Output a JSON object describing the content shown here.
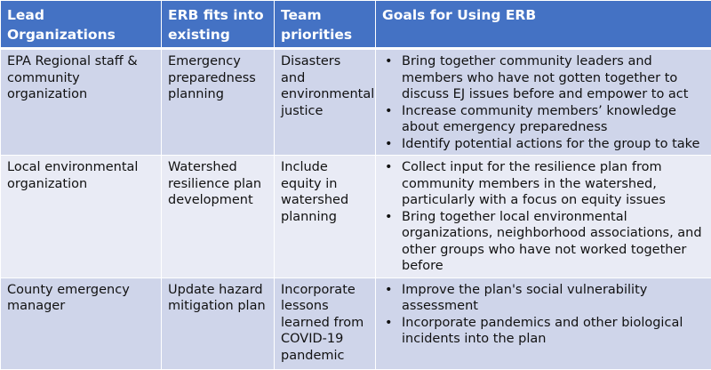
{
  "colors": {
    "header_bg": "#4472c4",
    "row_dark": "#cfd5ea",
    "row_light": "#e9ebf5",
    "border": "#ffffff",
    "header_text": "#ffffff",
    "body_text": "#111111"
  },
  "table": {
    "headers": [
      "Lead Organizations",
      "ERB fits into existing",
      "Team priorities",
      "Goals for Using ERB"
    ],
    "rows": [
      {
        "lead": "EPA Regional staff & community organization",
        "fits": "Emergency preparedness planning",
        "priorities": "Disasters and environmental justice",
        "goals": [
          "Bring together community leaders and members who have not gotten together to discuss EJ issues before and empower to act",
          "Increase community members’ knowledge about emergency preparedness",
          "Identify potential actions for the group to take"
        ]
      },
      {
        "lead": "Local environmental organization",
        "fits": "Watershed resilience plan development",
        "priorities": "Include equity in watershed planning",
        "goals": [
          "Collect input for the resilience plan from community members in the watershed, particularly with a focus on equity issues",
          "Bring together local environmental organizations, neighborhood associations, and other groups who have not worked together before"
        ]
      },
      {
        "lead": "County emergency manager",
        "fits": "Update hazard mitigation plan",
        "priorities": "Incorporate lessons learned from COVID-19 pandemic",
        "goals": [
          "Improve the plan's social vulnerability assessment",
          "Incorporate pandemics and other biological incidents into the plan"
        ]
      }
    ]
  }
}
